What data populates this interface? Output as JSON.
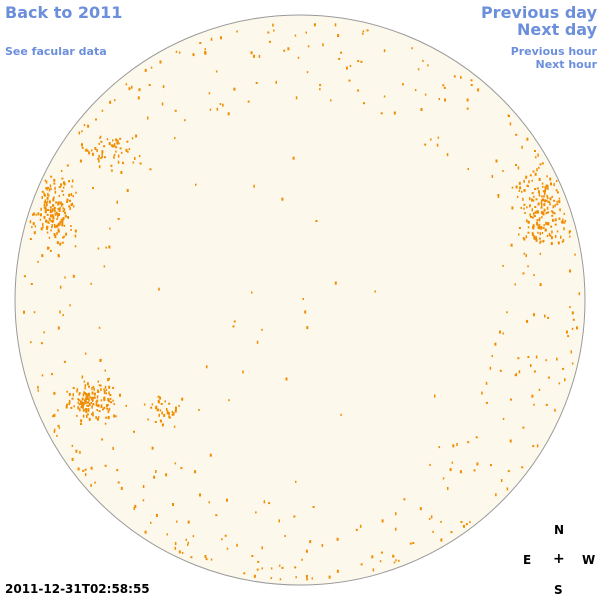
{
  "nav": {
    "back_label": "Back to 2011",
    "facular_label": "See facular data",
    "prev_day_label": "Previous day",
    "next_day_label": "Next day",
    "prev_hour_label": "Previous hour",
    "next_hour_label": "Next hour"
  },
  "timestamp": "2011-12-31T02:58:55",
  "compass": {
    "north": "N",
    "east": "E",
    "center": "+",
    "west": "W",
    "south": "S"
  },
  "colors": {
    "link": "#6c8fdc",
    "disk_fill": "#fdf8ec",
    "disk_outline": "#9a9a9a",
    "facula": "#f08c00"
  }
}
